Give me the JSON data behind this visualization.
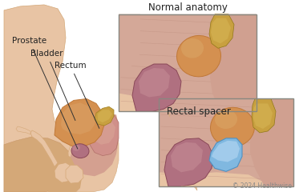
{
  "title": "Normal anatomy",
  "title2": "Rectal spacer",
  "copyright": "© 2024 Healthwise",
  "labels": [
    "Prostate",
    "Bladder",
    "Rectum"
  ],
  "bg_color": "#ffffff",
  "skin_light": "#e8c4a4",
  "skin_mid": "#d4a878",
  "skin_dark": "#c49060",
  "muscle_pink": "#d4a090",
  "muscle_stripe": "#c08878",
  "bladder_orange": "#d49050",
  "bladder_mid": "#c07838",
  "prostate_mauve": "#b07080",
  "prostate_dark": "#8a4858",
  "prostate_light": "#c89098",
  "rectum_pink": "#d0908a",
  "rectum_dark": "#b07068",
  "yellow_tan": "#c8a040",
  "yellow_light": "#d8b858",
  "spacer_blue": "#80b8e0",
  "spacer_light": "#b0d4f0",
  "box_color": "#888880",
  "label_color": "#222222",
  "title_fontsize": 8.5,
  "label_fontsize": 7.5,
  "copyright_fontsize": 5.5
}
